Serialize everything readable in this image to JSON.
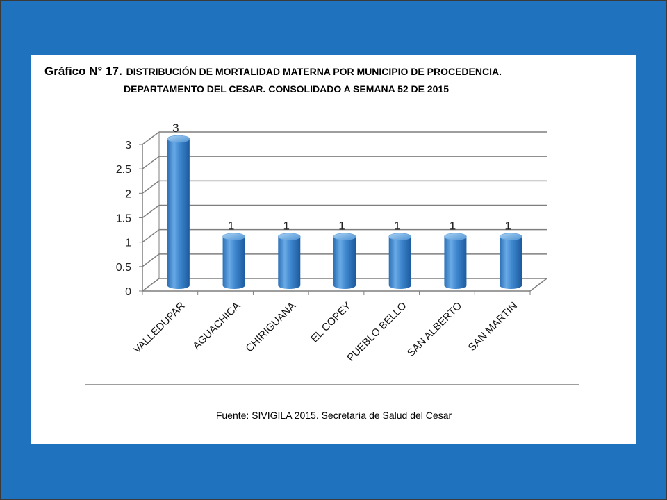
{
  "title": {
    "prefix": "Gráfico N° 17.",
    "line1": "DISTRIBUCIÓN DE MORTALIDAD MATERNA POR MUNICIPIO DE PROCEDENCIA.",
    "line2": "DEPARTAMENTO DEL CESAR.  CONSOLIDADO A SEMANA 52 DE 2015"
  },
  "source": "Fuente: SIVIGILA 2015. Secretaría de Salud del Cesar",
  "colors": {
    "background": "#1f72bd",
    "bar_light": "#8cc0ea",
    "bar_mid": "#3f88cf",
    "bar_dark": "#1c5a9e",
    "grid": "#7f7f7f"
  },
  "chart_data": {
    "type": "bar",
    "categories": [
      "VALLEDUPAR",
      "AGUACHICA",
      "CHIRIGUANA",
      "EL COPEY",
      "PUEBLO BELLO",
      "SAN ALBERTO",
      "SAN MARTIN"
    ],
    "values": [
      3,
      1,
      1,
      1,
      1,
      1,
      1
    ],
    "data_labels": [
      "3",
      "1",
      "1",
      "1",
      "1",
      "1",
      "1"
    ],
    "ylim": [
      0,
      3
    ],
    "yticks": [
      "0",
      "0.5",
      "1",
      "1.5",
      "2",
      "2.5",
      "3"
    ],
    "ytick_values": [
      0,
      0.5,
      1,
      1.5,
      2,
      2.5,
      3
    ],
    "xlabel": "",
    "ylabel": "",
    "grid": true,
    "legend": "none",
    "style": "3d-cylinder"
  }
}
